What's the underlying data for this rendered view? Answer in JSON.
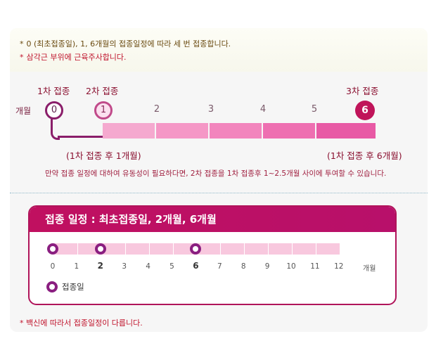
{
  "notes": [
    "0 (최초접종일), 1, 6개월의 접종일정에 따라 세 번 접종합니다.",
    "삼각근 부위에 근육주사합니다."
  ],
  "note_marker": "*",
  "schedule": {
    "axis_label": "개월",
    "dose_labels": [
      "1차 접종",
      "2차 접종",
      "3차 접종"
    ],
    "months": [
      "0",
      "1",
      "2",
      "3",
      "4",
      "5",
      "6"
    ],
    "dose_months": [
      0,
      1,
      6
    ],
    "interval_labels": [
      "(1차 접종 후 1개월)",
      "(1차 접종 후 6개월)"
    ],
    "segment_colors": [
      "#f5a9cf",
      "#f597c6",
      "#f285bd",
      "#ee6fb1",
      "#e85aa5"
    ],
    "remark": "만약 접종 일정에 대하여 유동성이 필요하다면, 2차 접종을 1차 접종후 1~2.5개월 사이에 투여할 수 있습니다."
  },
  "card": {
    "title": "접종 일정 : 최초접종일, 2개월, 6개월",
    "months": [
      "0",
      "1",
      "2",
      "3",
      "4",
      "5",
      "6",
      "7",
      "8",
      "9",
      "10",
      "11",
      "12"
    ],
    "unit": "개월",
    "dose_months": [
      0,
      2,
      6
    ],
    "legend": "접종일",
    "accent": "#b0145a"
  },
  "footnote": "* 백신에 따라서 접종일정이 다릅니다."
}
